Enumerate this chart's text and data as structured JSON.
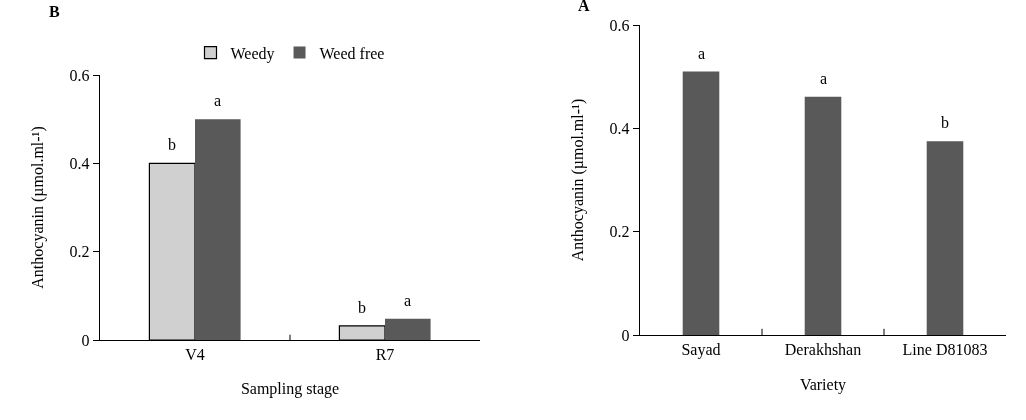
{
  "chart_data": [
    {
      "type": "bar",
      "title": "B",
      "xlabel": "Sampling stage",
      "ylabel": "Anthocyanin (µmol.ml-¹)",
      "categories": [
        "V4",
        "R7"
      ],
      "series": [
        {
          "name": "Weedy",
          "color": "#d0d0d0",
          "values": [
            0.4,
            0.032
          ]
        },
        {
          "name": "Weed free",
          "color": "#595959",
          "values": [
            0.5,
            0.048
          ]
        }
      ],
      "ylim": [
        0,
        0.6
      ],
      "yticks": [
        0,
        0.2,
        0.4,
        0.6
      ],
      "grid": false,
      "legend": "top",
      "annotations": [
        {
          "text": "b",
          "x": "V4",
          "y": 0.4
        },
        {
          "text": "a",
          "x": "V4",
          "y": 0.5
        },
        {
          "text": "b",
          "x": "R7",
          "y": 0.032
        },
        {
          "text": "a",
          "x": "R7",
          "y": 0.048
        }
      ]
    },
    {
      "type": "bar",
      "title": "A",
      "xlabel": "Variety",
      "ylabel": "Anthocyanin (µmol.ml-¹)",
      "categories": [
        "Sayad",
        "Derakhshan",
        "Line D81083"
      ],
      "values": [
        0.51,
        0.461,
        0.375
      ],
      "color": "#595959",
      "ylim": [
        0,
        0.6
      ],
      "yticks": [
        0,
        0.2,
        0.4,
        0.6
      ],
      "grid": false,
      "legend": false,
      "annotations": [
        {
          "text": "a",
          "x": "Sayad",
          "y": 0.51
        },
        {
          "text": "a",
          "x": "Derakhshan",
          "y": 0.461
        },
        {
          "text": "b",
          "x": "Line D81083",
          "y": 0.375
        }
      ]
    }
  ]
}
